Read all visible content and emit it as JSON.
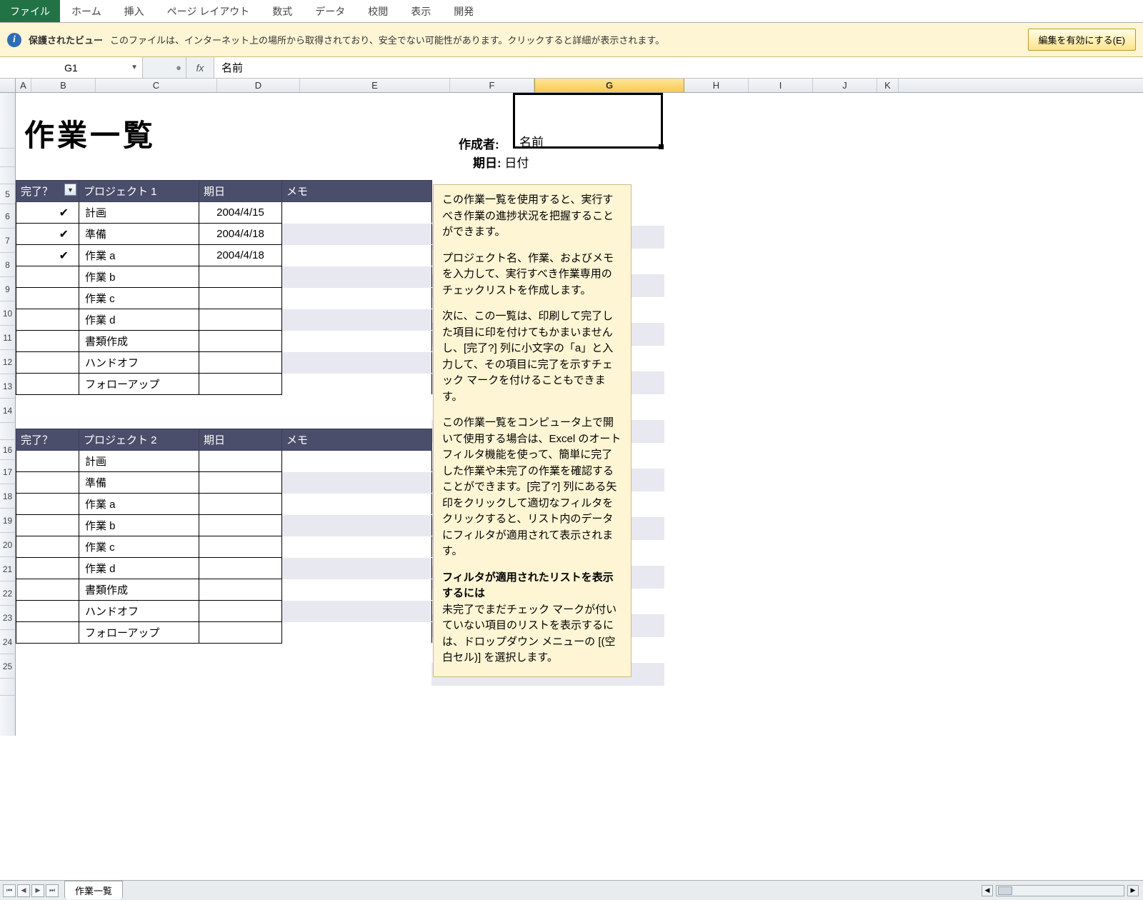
{
  "ribbon": {
    "file": "ファイル",
    "tabs": [
      "ホーム",
      "挿入",
      "ページ レイアウト",
      "数式",
      "データ",
      "校閲",
      "表示",
      "開発"
    ]
  },
  "protected_view": {
    "title": "保護されたビュー",
    "message": "このファイルは、インターネット上の場所から取得されており、安全でない可能性があります。クリックすると詳細が表示されます。",
    "button": "編集を有効にする(E)"
  },
  "formula_bar": {
    "namebox": "G1",
    "fx": "fx",
    "value": "名前"
  },
  "columns": [
    "A",
    "B",
    "C",
    "D",
    "E",
    "F",
    "G",
    "H",
    "I",
    "J",
    "K"
  ],
  "selected_col": "G",
  "worksheet": {
    "title": "作業一覧",
    "creator_label": "作成者:",
    "creator_value": "名前",
    "date_label": "期日:",
    "date_value": "日付"
  },
  "table_headers": {
    "done": "完了？",
    "project1": "プロジェクト 1",
    "project2": "プロジェクト 2",
    "due": "期日",
    "memo": "メモ"
  },
  "project1_rows": [
    {
      "done": "✔",
      "task": "計画",
      "date": "2004/4/15"
    },
    {
      "done": "✔",
      "task": "準備",
      "date": "2004/4/18"
    },
    {
      "done": "✔",
      "task": "作業 a",
      "date": "2004/4/18"
    },
    {
      "done": "",
      "task": "作業 b",
      "date": ""
    },
    {
      "done": "",
      "task": "作業 c",
      "date": ""
    },
    {
      "done": "",
      "task": "作業 d",
      "date": ""
    },
    {
      "done": "",
      "task": "書類作成",
      "date": ""
    },
    {
      "done": "",
      "task": "ハンドオフ",
      "date": ""
    },
    {
      "done": "",
      "task": "フォローアップ",
      "date": ""
    }
  ],
  "project2_rows": [
    {
      "task": "計画"
    },
    {
      "task": "準備"
    },
    {
      "task": "作業 a"
    },
    {
      "task": "作業 b"
    },
    {
      "task": "作業 c"
    },
    {
      "task": "作業 d"
    },
    {
      "task": "書類作成"
    },
    {
      "task": "ハンドオフ"
    },
    {
      "task": "フォローアップ"
    }
  ],
  "help": {
    "p1": "この作業一覧を使用すると、実行すべき作業の進捗状況を把握することができます。",
    "p2": "プロジェクト名、作業、およびメモを入力して、実行すべき作業専用のチェックリストを作成します。",
    "p3": "次に、この一覧は、印刷して完了した項目に印を付けてもかまいませんし、[完了?] 列に小文字の「a」と入力して、その項目に完了を示すチェック マークを付けることもできます。",
    "p4": "この作業一覧をコンピュータ上で開いて使用する場合は、Excel のオートフィルタ機能を使って、簡単に完了した作業や未完了の作業を確認することができます。[完了?] 列にある矢印をクリックして適切なフィルタをクリックすると、リスト内のデータにフィルタが適用されて表示されます。",
    "p5_bold": "フィルタが適用されたリストを表示するには",
    "p5": "未完了でまだチェック マークが付いていない項目のリストを表示するには、ドロップダウン メニューの [(空白セル)] を選択します。"
  },
  "sheet_tab": "作業一覧",
  "colors": {
    "header_bg": "#4a4e6a",
    "stripe": "#e8e8f0",
    "help_bg": "#fdf5d4",
    "sel_col": "#f9c94f"
  }
}
